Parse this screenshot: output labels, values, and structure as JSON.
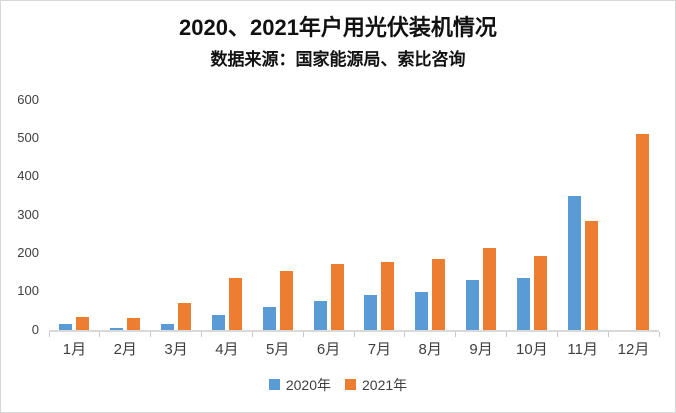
{
  "title": "2020、2021年户用光伏装机情况",
  "subtitle": "数据来源：国家能源局、索比咨询",
  "colors": {
    "series_2020": "#5B9BD5",
    "series_2021": "#ED7D31",
    "axis": "#D9D9D9"
  },
  "chart_data": {
    "type": "bar",
    "title": "2020、2021年户用光伏装机情况",
    "subtitle": "数据来源：国家能源局、索比咨询",
    "categories": [
      "1月",
      "2月",
      "3月",
      "4月",
      "5月",
      "6月",
      "7月",
      "8月",
      "9月",
      "10月",
      "11月",
      "12月"
    ],
    "series": [
      {
        "name": "2020年",
        "color": "#5B9BD5",
        "values": [
          15,
          5,
          15,
          40,
          60,
          75,
          90,
          100,
          130,
          135,
          350,
          0
        ]
      },
      {
        "name": "2021年",
        "color": "#ED7D31",
        "values": [
          34,
          30,
          70,
          135,
          155,
          173,
          177,
          185,
          214,
          193,
          285,
          510
        ]
      }
    ],
    "xlabel": "",
    "ylabel": "",
    "ylim": [
      0,
      600
    ],
    "yticks": [
      0,
      100,
      200,
      300,
      400,
      500,
      600
    ],
    "grid": false,
    "legend_position": "bottom"
  }
}
